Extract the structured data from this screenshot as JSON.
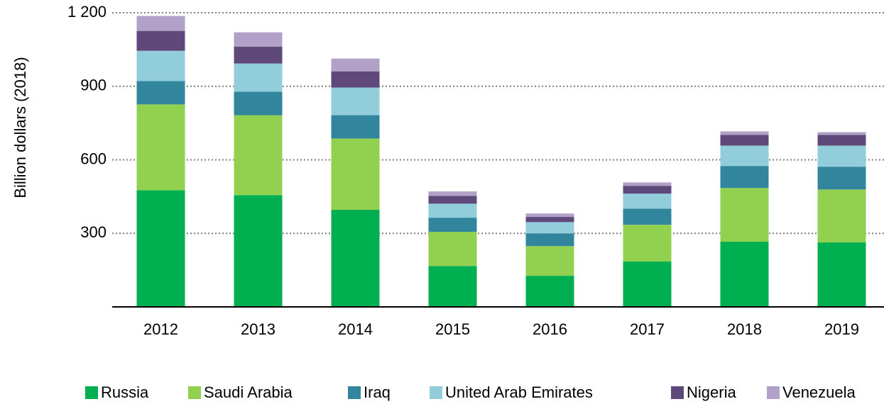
{
  "chart_data": {
    "type": "stacked_bar",
    "y_label": "Billion dollars (2018)",
    "categories": [
      "2012",
      "2013",
      "2014",
      "2015",
      "2016",
      "2017",
      "2018",
      "2019"
    ],
    "series": [
      {
        "name": "Russia",
        "color": "#00b050",
        "values": [
          476,
          456,
          396,
          167,
          127,
          185,
          266,
          263
        ]
      },
      {
        "name": "Saudi Arabia",
        "color": "#92d050",
        "values": [
          350,
          326,
          291,
          139,
          121,
          150,
          219,
          216
        ]
      },
      {
        "name": "Iraq",
        "color": "#31859c",
        "values": [
          95,
          96,
          95,
          58,
          52,
          66,
          90,
          93
        ]
      },
      {
        "name": "United Arab Emirates",
        "color": "#92cddc",
        "values": [
          124,
          115,
          113,
          57,
          46,
          61,
          83,
          86
        ]
      },
      {
        "name": "Nigeria",
        "color": "#5f497a",
        "values": [
          81,
          69,
          66,
          32,
          21,
          32,
          44,
          44
        ]
      },
      {
        "name": "Venezuela",
        "color": "#b1a0c7",
        "values": [
          61,
          58,
          52,
          18,
          14,
          14,
          14,
          11
        ]
      }
    ],
    "ylim": [
      0,
      1200
    ],
    "yticks": [
      300,
      600,
      900,
      {
        "value": 1200,
        "label": "1 200"
      }
    ],
    "grid": true
  }
}
